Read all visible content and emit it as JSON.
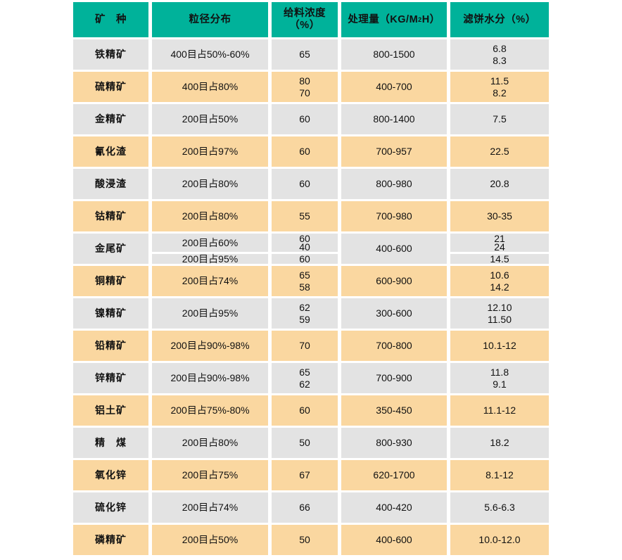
{
  "table": {
    "colors": {
      "header_bg": "#00B29A",
      "row_gray_bg": "#E3E3E3",
      "row_peach_bg": "#FAD7A0",
      "text": "#111111",
      "page_bg": "#FFFFFF"
    },
    "headers": [
      {
        "name": "mineral",
        "text": "矿　种"
      },
      {
        "name": "particle-size",
        "text": "粒径分布"
      },
      {
        "name": "feed-concentration",
        "text": "给料浓度（%）"
      },
      {
        "name": "capacity",
        "text": "处理量（KG/M",
        "sup": "2",
        "text_after": "H）"
      },
      {
        "name": "cake-moisture",
        "text": "滤饼水分（%）"
      }
    ],
    "rows": [
      {
        "mineral": "铁精矿",
        "shade": "gray",
        "particle": [
          "400目占50%-60%"
        ],
        "concentration": [
          "65"
        ],
        "capacity": "800-1500",
        "moisture": [
          "6.8",
          "8.3"
        ]
      },
      {
        "mineral": "硫精矿",
        "shade": "peach",
        "particle": [
          "400目占80%"
        ],
        "concentration": [
          "80",
          "70"
        ],
        "capacity": "400-700",
        "moisture": [
          "11.5",
          "8.2"
        ]
      },
      {
        "mineral": "金精矿",
        "shade": "gray",
        "particle": [
          "200目占50%"
        ],
        "concentration": [
          "60"
        ],
        "capacity": "800-1400",
        "moisture": [
          "7.5"
        ]
      },
      {
        "mineral": "氰化渣",
        "shade": "peach",
        "particle": [
          "200目占97%"
        ],
        "concentration": [
          "60"
        ],
        "capacity": "700-957",
        "moisture": [
          "22.5"
        ]
      },
      {
        "mineral": "酸浸渣",
        "shade": "gray",
        "particle": [
          "200目占80%"
        ],
        "concentration": [
          "60"
        ],
        "capacity": "800-980",
        "moisture": [
          "20.8"
        ]
      },
      {
        "mineral": "钴精矿",
        "shade": "peach",
        "particle": [
          "200目占80%"
        ],
        "concentration": [
          "55"
        ],
        "capacity": "700-980",
        "moisture": [
          "30-35"
        ]
      },
      {
        "mineral": "金尾矿",
        "shade": "gray",
        "split": true,
        "capacity": "400-600",
        "sub_rows": [
          {
            "particle": "200目占60%",
            "concentration": [
              "60",
              "40"
            ],
            "moisture": [
              "21",
              "24"
            ]
          },
          {
            "particle": "200目占95%",
            "concentration": [
              "60"
            ],
            "moisture": [
              "14.5"
            ]
          }
        ]
      },
      {
        "mineral": "铜精矿",
        "shade": "peach",
        "particle": [
          "200目占74%"
        ],
        "concentration": [
          "65",
          "58"
        ],
        "capacity": "600-900",
        "moisture": [
          "10.6",
          "14.2"
        ]
      },
      {
        "mineral": "镍精矿",
        "shade": "gray",
        "particle": [
          "200目占95%"
        ],
        "concentration": [
          "62",
          "59"
        ],
        "capacity": "300-600",
        "moisture": [
          "12.10",
          "11.50"
        ]
      },
      {
        "mineral": "铅精矿",
        "shade": "peach",
        "particle": [
          "200目占90%-98%"
        ],
        "concentration": [
          "70"
        ],
        "capacity": "700-800",
        "moisture": [
          "10.1-12"
        ]
      },
      {
        "mineral": "锌精矿",
        "shade": "gray",
        "particle": [
          "200目占90%-98%"
        ],
        "concentration": [
          "65",
          "62"
        ],
        "capacity": "700-900",
        "moisture": [
          "11.8",
          "9.1"
        ]
      },
      {
        "mineral": "铝土矿",
        "shade": "peach",
        "particle": [
          "200目占75%-80%"
        ],
        "concentration": [
          "60"
        ],
        "capacity": "350-450",
        "moisture": [
          "11.1-12"
        ]
      },
      {
        "mineral": "精　煤",
        "shade": "gray",
        "particle": [
          "200目占80%"
        ],
        "concentration": [
          "50"
        ],
        "capacity": "800-930",
        "moisture": [
          "18.2"
        ]
      },
      {
        "mineral": "氧化锌",
        "shade": "peach",
        "particle": [
          "200目占75%"
        ],
        "concentration": [
          "67"
        ],
        "capacity": "620-1700",
        "moisture": [
          "8.1-12"
        ]
      },
      {
        "mineral": "硫化锌",
        "shade": "gray",
        "particle": [
          "200目占74%"
        ],
        "concentration": [
          "66"
        ],
        "capacity": "400-420",
        "moisture": [
          "5.6-6.3"
        ]
      },
      {
        "mineral": "磷精矿",
        "shade": "peach",
        "particle": [
          "200目占50%"
        ],
        "concentration": [
          "50"
        ],
        "capacity": "400-600",
        "moisture": [
          "10.0-12.0"
        ]
      }
    ]
  }
}
